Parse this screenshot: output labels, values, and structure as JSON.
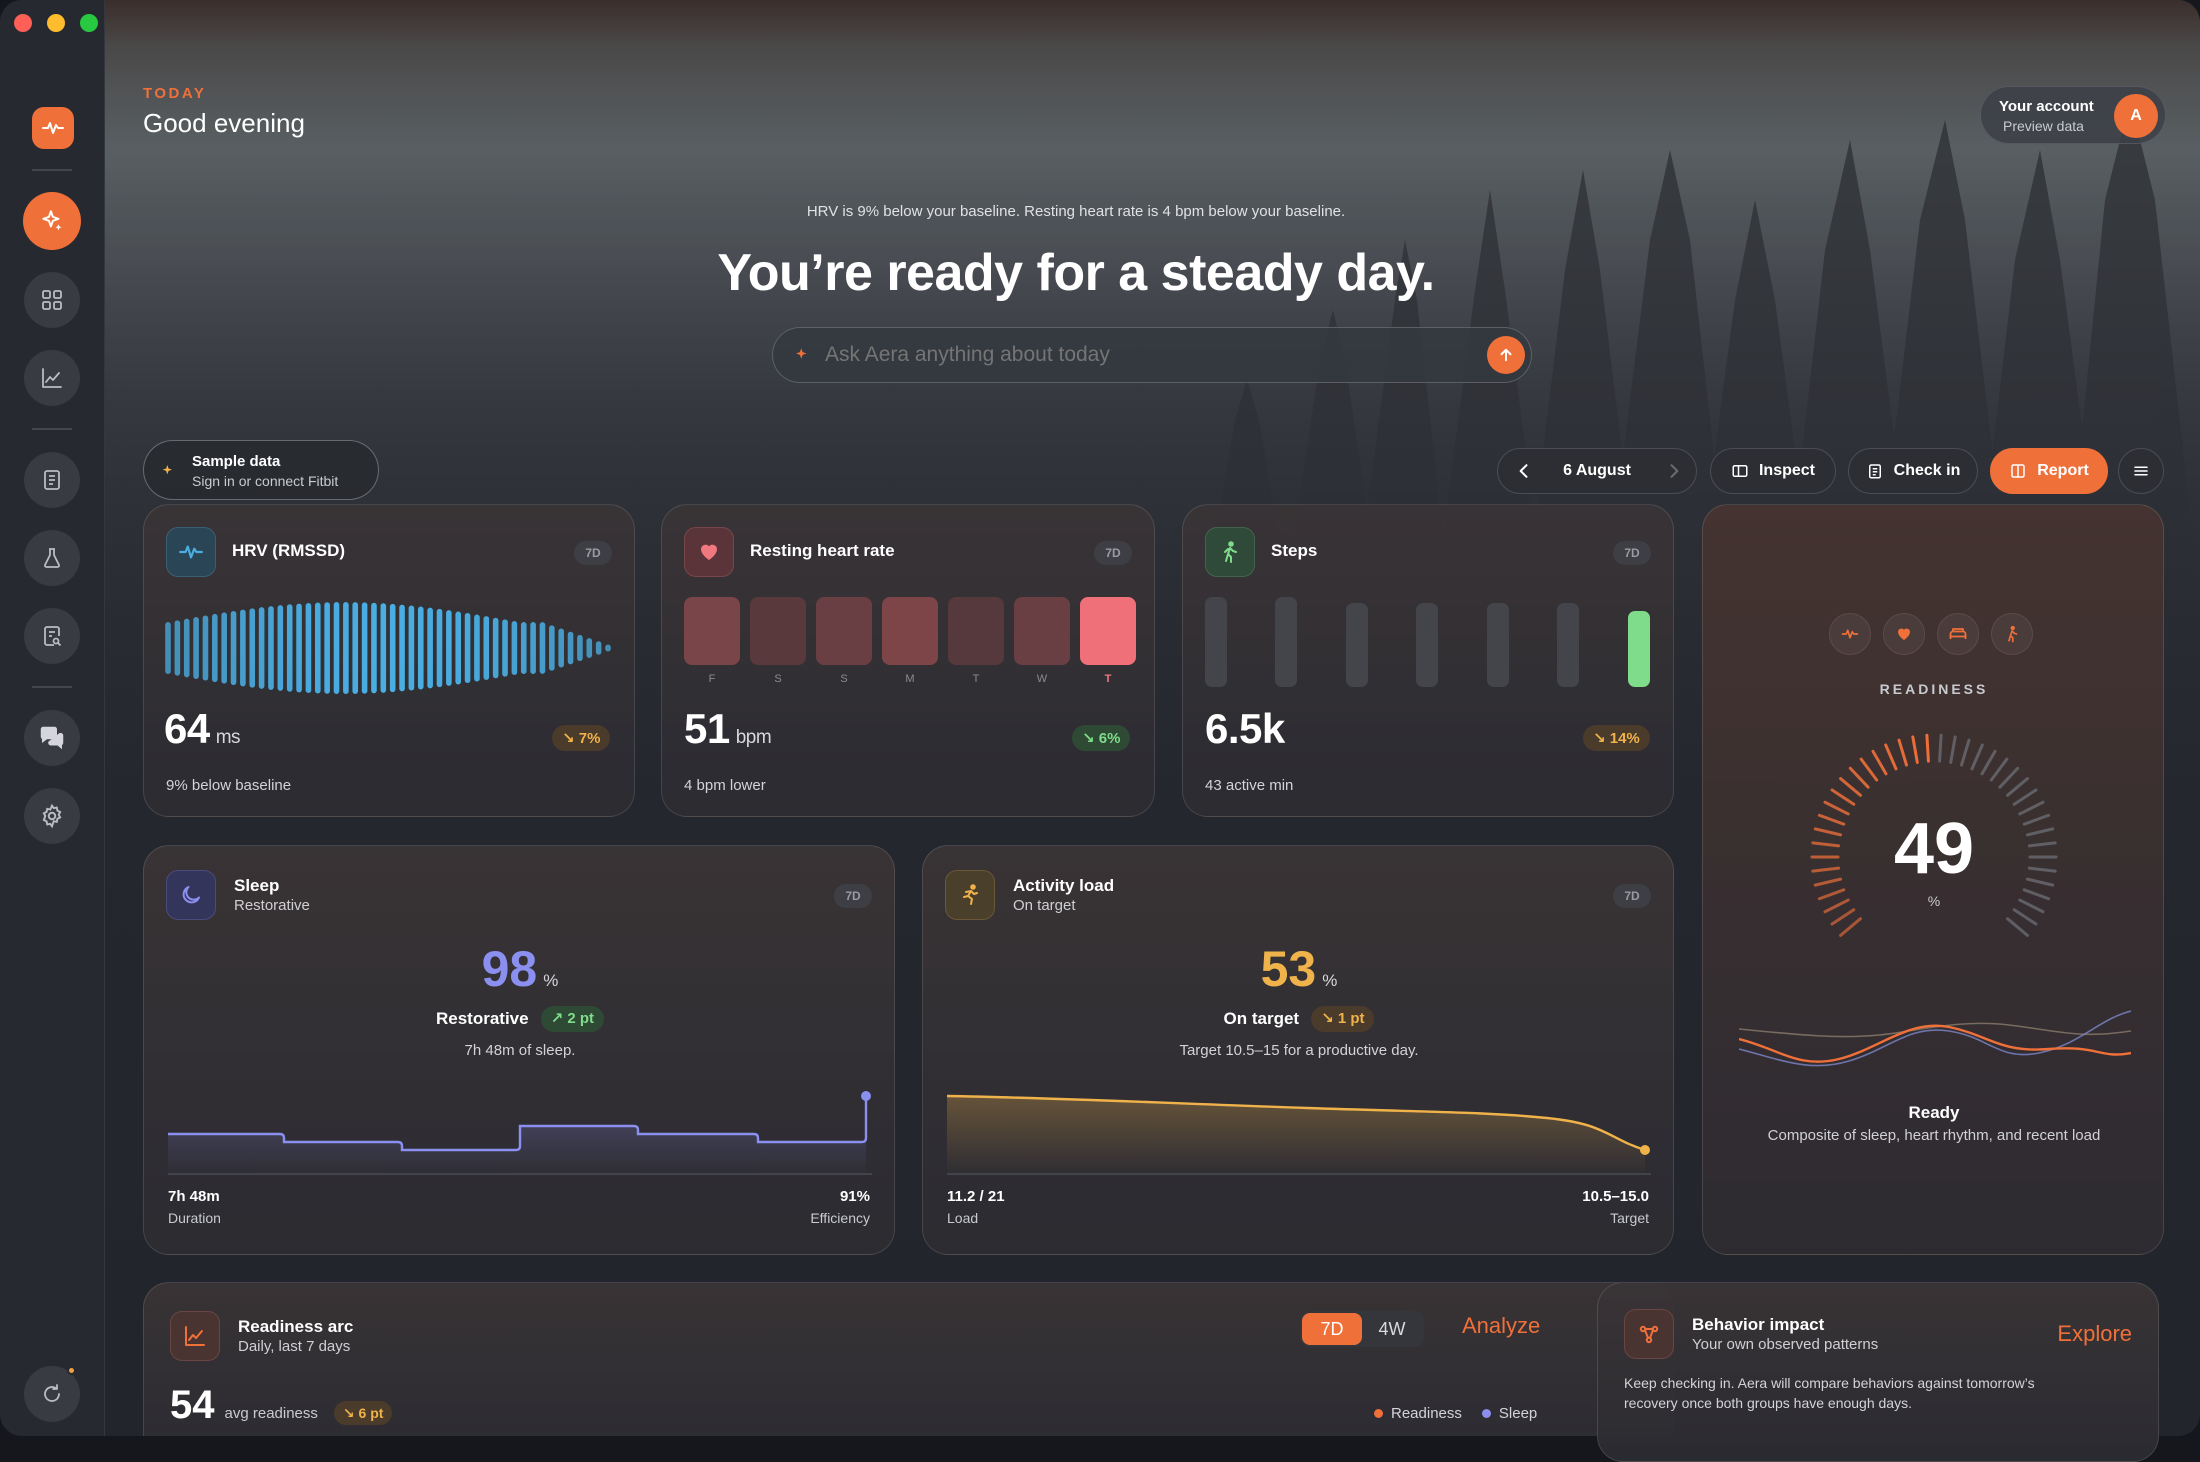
{
  "header": {
    "eyebrow": "TODAY",
    "greeting": "Good evening"
  },
  "account": {
    "title": "Your account",
    "subtitle": "Preview data",
    "avatar_letter": "A"
  },
  "hero": {
    "baseline_note": "HRV is 9% below your baseline. Resting heart rate is 4 bpm below your baseline.",
    "headline": "You’re ready for a steady day.",
    "ask_placeholder": "Ask Aera anything about today"
  },
  "sample": {
    "title": "Sample data",
    "subtitle": "Sign in or connect Fitbit"
  },
  "toolbar": {
    "date": "6 August",
    "inspect": "Inspect",
    "check_in": "Check in",
    "report": "Report"
  },
  "hrv": {
    "title": "HRV (RMSSD)",
    "range": "7D",
    "value": "64",
    "unit": "ms",
    "change": "↘ 7%",
    "note": "9% below baseline"
  },
  "rhr": {
    "title": "Resting heart rate",
    "range": "7D",
    "value": "51",
    "unit": "bpm",
    "change": "↘ 6%",
    "note": "4 bpm lower",
    "days": [
      "F",
      "S",
      "S",
      "M",
      "T",
      "W",
      "T"
    ]
  },
  "steps": {
    "title": "Steps",
    "range": "7D",
    "value": "6.5k",
    "change": "↘ 14%",
    "note": "43 active min"
  },
  "readiness": {
    "label": "READINESS",
    "value": "49",
    "unit": "%",
    "status": "Ready",
    "desc": "Composite of sleep, heart rhythm, and recent load"
  },
  "sleep": {
    "title": "Sleep",
    "subtitle": "Restorative",
    "range": "7D",
    "value": "98",
    "unit": "%",
    "status": "Restorative",
    "change": "↗ 2 pt",
    "note": "7h 48m of sleep.",
    "left_value": "7h 48m",
    "left_label": "Duration",
    "right_value": "91%",
    "right_label": "Efficiency"
  },
  "activity": {
    "title": "Activity load",
    "subtitle": "On target",
    "range": "7D",
    "value": "53",
    "unit": "%",
    "status": "On target",
    "change": "↘ 1 pt",
    "note": "Target 10.5–15 for a productive day.",
    "left_value": "11.2 / 21",
    "left_label": "Load",
    "right_value": "10.5–15.0",
    "right_label": "Target"
  },
  "arc": {
    "title": "Readiness arc",
    "subtitle": "Daily, last 7 days",
    "tab_7d": "7D",
    "tab_4w": "4W",
    "analyze": "Analyze",
    "value": "54",
    "value_label": "avg readiness",
    "change": "↘ 6 pt",
    "legend_a": "Readiness",
    "legend_b": "Sleep"
  },
  "behavior": {
    "title": "Behavior impact",
    "subtitle": "Your own observed patterns",
    "explore": "Explore",
    "note_line1": "Keep checking in. Aera will compare behaviors against tomorrow’s",
    "note_line2": "recovery once both groups have enough days."
  },
  "colors": {
    "accent": "#f0703a",
    "hrv": "#4aaee3",
    "sleep": "#8b8ff0",
    "activity": "#f0b24a",
    "green": "#7fdc8a"
  }
}
